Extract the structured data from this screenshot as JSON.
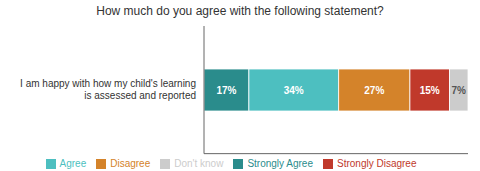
{
  "chart_data": {
    "type": "bar",
    "title": "How much do you agree with the following statement?",
    "orientation": "horizontal",
    "stacked": true,
    "data_labels": true,
    "legend": "bottom",
    "tick_labels": "y",
    "categories": [
      "I am happy with how my child's learning\nis assessed and reported"
    ],
    "xlim": [
      0,
      100
    ],
    "series": [
      {
        "name": "Strongly Agree",
        "color": "#2a8c8c",
        "values": [
          17
        ],
        "value_labels": [
          "17%"
        ]
      },
      {
        "name": "Agree",
        "color": "#4dbfc0",
        "values": [
          34
        ],
        "value_labels": [
          "34%"
        ]
      },
      {
        "name": "Disagree",
        "color": "#d4832a",
        "values": [
          27
        ],
        "value_labels": [
          "27%"
        ]
      },
      {
        "name": "Strongly Disagree",
        "color": "#c0392b",
        "values": [
          15
        ],
        "value_labels": [
          "15%"
        ]
      },
      {
        "name": "Don't know",
        "color": "#cccccc",
        "values": [
          7
        ],
        "value_labels": [
          "7%"
        ]
      }
    ]
  }
}
